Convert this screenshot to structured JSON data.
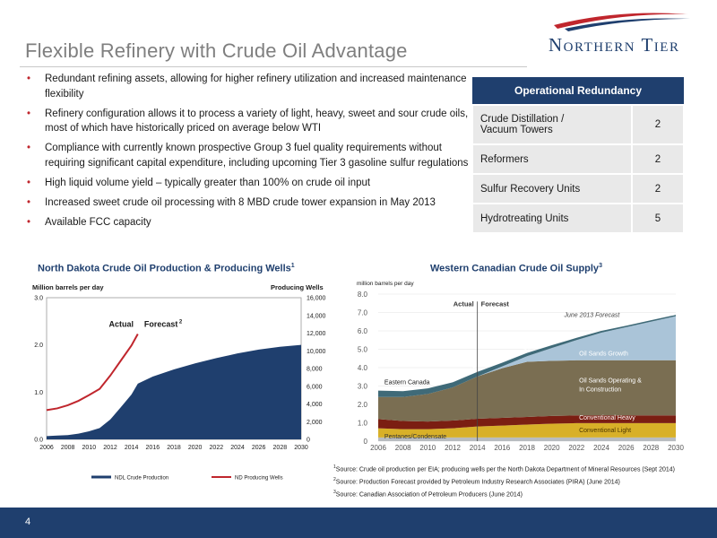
{
  "page": {
    "title": "Flexible Refinery with Crude Oil Advantage",
    "page_number": "4"
  },
  "logo": {
    "text": "Northern Tier",
    "swoosh_color": "#c0262d",
    "text_color": "#1f3f6e"
  },
  "bullets": [
    "Redundant refining assets, allowing for higher refinery utilization and increased maintenance flexibility",
    "Refinery configuration allows it to process a variety of light, heavy, sweet and sour crude oils, most of which have historically priced on average below WTI",
    "Compliance with currently known prospective Group 3 fuel quality requirements without requiring significant capital expenditure, including upcoming Tier 3 gasoline sulfur regulations",
    "High liquid volume yield – typically greater than 100% on crude oil input",
    "Increased sweet crude oil processing with 8 MBD crude tower expansion in May 2013",
    "Available FCC capacity"
  ],
  "redundancy_table": {
    "header": "Operational Redundancy",
    "rows": [
      {
        "label_line1": "Crude Distillation /",
        "label_line2": "Vacuum Towers",
        "value": "2"
      },
      {
        "label_line1": "Reformers",
        "label_line2": "",
        "value": "2"
      },
      {
        "label_line1": "Sulfur Recovery Units",
        "label_line2": "",
        "value": "2"
      },
      {
        "label_line1": "Hydrotreating Units",
        "label_line2": "",
        "value": "5"
      }
    ]
  },
  "nd_chart": {
    "heading": "North Dakota Crude Oil Production & Producing Wells",
    "heading_sup": "1"
  },
  "wc_chart": {
    "heading": "Western Canadian Crude Oil Supply",
    "heading_sup": "3"
  },
  "sources": [
    {
      "sup": "1",
      "text": "Source:  Crude oil production per EIA; producing wells per the North Dakota Department of Mineral Resources (Sept 2014)"
    },
    {
      "sup": "2",
      "text": "Source:  Production Forecast provided by Petroleum Industry Research Associates (PIRA) (June 2014)"
    },
    {
      "sup": "3",
      "text": "Source:  Canadian Association of Petroleum Producers (June 2014)"
    }
  ],
  "colors": {
    "brand_navy": "#1f3f6e",
    "accent_red": "#c0262d",
    "table_row_bg": "#e9e9e9",
    "wc_eastern": "#3f6a78",
    "wc_oilsands_operating": "#7a6e52",
    "wc_oilsands_growth": "#aac4d8",
    "wc_conv_heavy": "#7b1e12",
    "wc_conv_light": "#d8b028",
    "wc_pentanes": "#b8bcc0"
  },
  "chart_data": [
    {
      "type": "area",
      "title": "North Dakota Crude Oil Production & Producing Wells",
      "ylabel": "Million barrels per day",
      "y2label": "Producing Wells",
      "xlim": [
        2006,
        2030
      ],
      "ylim": [
        0,
        3
      ],
      "y2lim": [
        0,
        16000
      ],
      "xticks": [
        "2006",
        "2008",
        "2010",
        "2012",
        "2014",
        "2016",
        "2018",
        "2020",
        "2022",
        "2024",
        "2026",
        "2028",
        "2030"
      ],
      "yticks": [
        "0.0",
        "1.0",
        "2.0",
        "3.0"
      ],
      "y2ticks": [
        "0",
        "2,000",
        "4,000",
        "6,000",
        "8,000",
        "10,000",
        "12,000",
        "14,000",
        "16,000"
      ],
      "annotations": {
        "actual": "Actual",
        "forecast": "Forecast",
        "forecast_sup": "2"
      },
      "legend": [
        "NDL Crude Production",
        "ND Producing Wells"
      ],
      "series": [
        {
          "name": "NDL Crude Production",
          "axis": "left",
          "kind": "area",
          "color": "#1f3f6e",
          "x": [
            2006,
            2007,
            2008,
            2009,
            2010,
            2011,
            2012,
            2013,
            2014,
            2014.6,
            2016,
            2018,
            2020,
            2022,
            2024,
            2026,
            2028,
            2030
          ],
          "values": [
            0.07,
            0.08,
            0.09,
            0.12,
            0.17,
            0.24,
            0.42,
            0.68,
            0.95,
            1.18,
            1.33,
            1.48,
            1.61,
            1.72,
            1.82,
            1.9,
            1.96,
            2.0
          ]
        },
        {
          "name": "ND Producing Wells",
          "axis": "right",
          "kind": "line",
          "color": "#c0262d",
          "x": [
            2006,
            2007,
            2008,
            2009,
            2010,
            2011,
            2012,
            2013,
            2014,
            2014.6
          ],
          "values": [
            3300,
            3500,
            3850,
            4350,
            5000,
            5700,
            7200,
            8900,
            10600,
            11900
          ]
        }
      ]
    },
    {
      "type": "area",
      "title": "Western Canadian Crude Oil Supply",
      "ylabel": "million barrels per day",
      "xlim": [
        2006,
        2030
      ],
      "ylim": [
        0,
        8
      ],
      "xticks": [
        "2006",
        "2008",
        "2010",
        "2012",
        "2014",
        "2016",
        "2018",
        "2020",
        "2022",
        "2024",
        "2026",
        "2028",
        "2030"
      ],
      "yticks": [
        "0",
        "1.0",
        "2.0",
        "3.0",
        "4.0",
        "5.0",
        "6.0",
        "7.0",
        "8.0"
      ],
      "annotations": {
        "actual": "Actual",
        "forecast": "Forecast",
        "june_forecast": "June 2013 Forecast"
      },
      "x": [
        2006,
        2008,
        2010,
        2012,
        2014,
        2016,
        2018,
        2020,
        2022,
        2024,
        2026,
        2028,
        2030
      ],
      "series": [
        {
          "name": "Pentanes/Condensate",
          "color": "#b8bcc0",
          "values": [
            0.2,
            0.2,
            0.2,
            0.2,
            0.2,
            0.2,
            0.2,
            0.2,
            0.2,
            0.2,
            0.2,
            0.2,
            0.2
          ]
        },
        {
          "name": "Conventional Light",
          "color": "#d8b028",
          "values": [
            0.5,
            0.45,
            0.45,
            0.5,
            0.6,
            0.65,
            0.7,
            0.75,
            0.78,
            0.78,
            0.78,
            0.78,
            0.78
          ]
        },
        {
          "name": "Conventional Heavy",
          "color": "#7b1e12",
          "values": [
            0.5,
            0.45,
            0.42,
            0.42,
            0.42,
            0.42,
            0.42,
            0.42,
            0.42,
            0.42,
            0.42,
            0.42,
            0.42
          ]
        },
        {
          "name": "Oil Sands Operating & In Construction",
          "color": "#7a6e52",
          "values": [
            1.2,
            1.3,
            1.5,
            1.8,
            2.3,
            2.7,
            3.0,
            3.0,
            3.0,
            3.0,
            3.0,
            3.0,
            3.0
          ]
        },
        {
          "name": "Oil Sands Growth",
          "color": "#aac4d8",
          "values": [
            0,
            0,
            0,
            0,
            0,
            0.1,
            0.3,
            0.7,
            1.1,
            1.5,
            1.8,
            2.1,
            2.4
          ]
        },
        {
          "name": "Eastern Canada",
          "color": "#3f6a78",
          "values": [
            0.35,
            0.32,
            0.3,
            0.28,
            0.25,
            0.2,
            0.18,
            0.15,
            0.12,
            0.1,
            0.08,
            0.08,
            0.07
          ]
        }
      ],
      "forecast_line": {
        "name": "June 2013 Forecast",
        "values": [
          null,
          null,
          null,
          3.5,
          4.1,
          4.6,
          5.0,
          5.4,
          5.8,
          6.1,
          6.4,
          6.7,
          6.9
        ]
      }
    }
  ]
}
